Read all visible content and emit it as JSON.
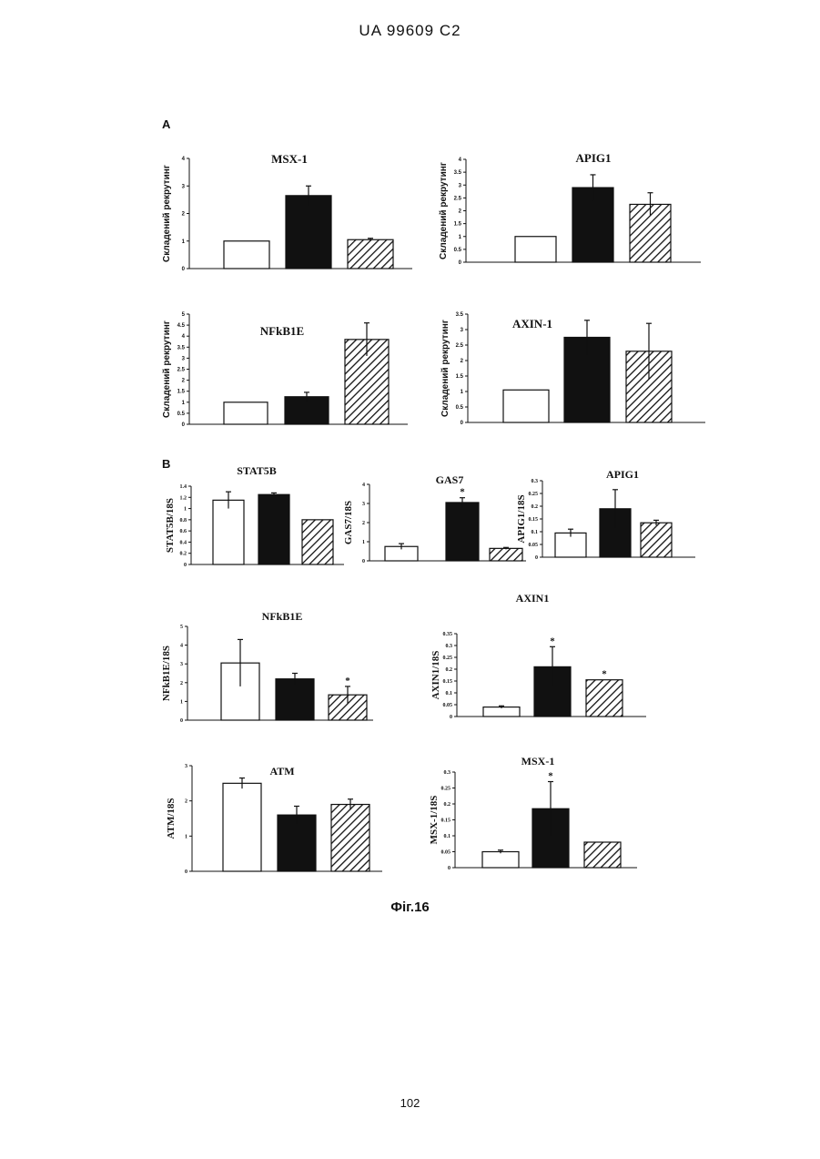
{
  "header": {
    "doc_id": "UA   99609   C2"
  },
  "footer": {
    "page_number": "102"
  },
  "figure": {
    "caption": "Фіг.16",
    "panel_a": "A",
    "panel_b": "B"
  },
  "colors": {
    "ink": "#111111",
    "bar_open": "#ffffff",
    "bar_filled": "#111111",
    "bar_hatched": "#111111"
  },
  "chart_data": [
    {
      "type": "bar",
      "panel": "A",
      "title": "MSX-1",
      "ylabel": "Складений рекрутинг",
      "ylim": [
        0,
        4
      ],
      "yticks": [
        "0",
        "1",
        "2",
        "3",
        "4"
      ],
      "values": [
        1.0,
        2.65,
        1.05
      ],
      "errors": [
        0,
        0.35,
        0.05
      ],
      "stars": []
    },
    {
      "type": "bar",
      "panel": "A",
      "title": "APIG1",
      "ylabel": "Складений рекрутинг",
      "ylim": [
        0,
        4
      ],
      "yticks": [
        "0",
        "0.5",
        "1",
        "1.5",
        "2",
        "2.5",
        "3",
        "3.5",
        "4"
      ],
      "values": [
        1.0,
        2.9,
        2.25
      ],
      "errors": [
        0,
        0.5,
        0.45
      ],
      "stars": []
    },
    {
      "type": "bar",
      "panel": "A",
      "title": "NFkB1E",
      "ylabel": "Складений рекрутинг",
      "ylim": [
        0,
        5
      ],
      "yticks": [
        "0",
        "0.5",
        "1",
        "1.5",
        "2",
        "2.5",
        "3",
        "3.5",
        "4",
        "4.5",
        "5"
      ],
      "values": [
        1.0,
        1.25,
        3.85
      ],
      "errors": [
        0,
        0.2,
        0.75
      ],
      "stars": []
    },
    {
      "type": "bar",
      "panel": "A",
      "title": "AXIN-1",
      "ylabel": "Складений рекрутинг",
      "ylim": [
        0,
        3.5
      ],
      "yticks": [
        "0",
        "0.5",
        "1",
        "1.5",
        "2",
        "2.5",
        "3",
        "3.5"
      ],
      "values": [
        1.05,
        2.75,
        2.3
      ],
      "errors": [
        0,
        0.55,
        0.9
      ],
      "stars": []
    },
    {
      "type": "bar",
      "panel": "B",
      "title": "STAT5B",
      "ylabel": "STAT5B/18S",
      "ylim": [
        0,
        1.4
      ],
      "yticks": [
        "0",
        "0.2",
        "0.4",
        "0.6",
        "0.8",
        "1",
        "1.2",
        "1.4"
      ],
      "values": [
        1.15,
        1.25,
        0.8
      ],
      "errors": [
        0.15,
        0.03,
        0
      ],
      "stars": []
    },
    {
      "type": "bar",
      "panel": "B",
      "title": "GAS7",
      "ylabel": "GAS7/18S",
      "ylim": [
        0,
        4
      ],
      "yticks": [
        "0",
        "1",
        "2",
        "3",
        "4"
      ],
      "values": [
        0.75,
        3.05,
        0.65
      ],
      "errors": [
        0.15,
        0.25,
        0.05
      ],
      "stars": [
        1
      ]
    },
    {
      "type": "bar",
      "panel": "B",
      "title": "APIG1",
      "ylabel": "APIG1/18S",
      "ylim": [
        0,
        0.3
      ],
      "yticks": [
        "0",
        "0.05",
        "0.1",
        "0.15",
        "0.2",
        "0.25",
        "0.3"
      ],
      "values": [
        0.095,
        0.19,
        0.135
      ],
      "errors": [
        0.015,
        0.075,
        0.01
      ],
      "stars": []
    },
    {
      "type": "bar",
      "panel": "B",
      "title": "NFkB1E",
      "ylabel": "NFkB1E/18S",
      "ylim": [
        0,
        5
      ],
      "yticks": [
        "0",
        "1",
        "2",
        "3",
        "4",
        "5"
      ],
      "values": [
        3.05,
        2.2,
        1.35
      ],
      "errors": [
        1.25,
        0.3,
        0.45
      ],
      "stars": [
        2
      ]
    },
    {
      "type": "bar",
      "panel": "B",
      "title": "AXIN1",
      "ylabel": "AXIN1/18S",
      "ylim": [
        0,
        0.35
      ],
      "yticks": [
        "0",
        "0.05",
        "0.1",
        "0.15",
        "0.2",
        "0.25",
        "0.3",
        "0.35"
      ],
      "values": [
        0.04,
        0.21,
        0.155
      ],
      "errors": [
        0.005,
        0.085,
        0
      ],
      "stars": [
        1,
        2
      ]
    },
    {
      "type": "bar",
      "panel": "B",
      "title": "ATM",
      "ylabel": "ATM/18S",
      "ylim": [
        0,
        3
      ],
      "yticks": [
        "0",
        "1",
        "2",
        "3"
      ],
      "values": [
        2.5,
        1.6,
        1.9
      ],
      "errors": [
        0.15,
        0.25,
        0.15
      ],
      "stars": []
    },
    {
      "type": "bar",
      "panel": "B",
      "title": "MSX-1",
      "ylabel": "MSX-1/18S",
      "ylim": [
        0,
        0.3
      ],
      "yticks": [
        "0",
        "0.05",
        "0.1",
        "0.15",
        "0.2",
        "0.25",
        "0.3"
      ],
      "values": [
        0.05,
        0.185,
        0.08
      ],
      "errors": [
        0.005,
        0.085,
        0
      ],
      "stars": [
        1
      ]
    }
  ]
}
